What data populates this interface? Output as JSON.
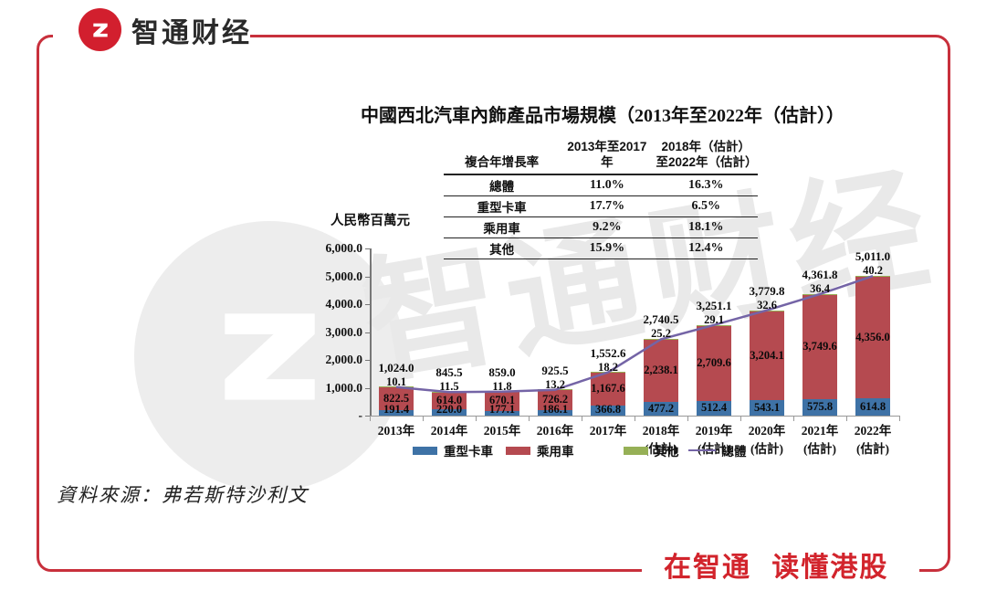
{
  "brand": {
    "name": "智通财经",
    "tagline": "在智通 读懂港股"
  },
  "watermark": {
    "text": "智通财经"
  },
  "title": "中國西北汽車內飾產品市場規模（2013年至2022年（估計））",
  "cagr_table": {
    "headers": [
      "複合年增長率",
      "2013年至2017年",
      "2018年（估計）\n至2022年（估計）"
    ],
    "rows": [
      [
        "總體",
        "11.0%",
        "16.3%"
      ],
      [
        "重型卡車",
        "17.7%",
        "6.5%"
      ],
      [
        "乘用車",
        "9.2%",
        "18.1%"
      ],
      [
        "其他",
        "15.9%",
        "12.4%"
      ]
    ]
  },
  "chart_data": {
    "type": "bar",
    "subtype": "stacked-bars-with-total-line",
    "title": "中國西北汽車內飾產品市場規模（2013年至2022年（估計））",
    "unit_label": "人民幣百萬元",
    "ylim": [
      0,
      6000
    ],
    "y_ticks": [
      "6,000.0",
      "5,000.0",
      "4,000.0",
      "3,000.0",
      "2,000.0",
      "1,000.0",
      "-"
    ],
    "grid": false,
    "legend_position": "bottom",
    "categories": [
      {
        "year": "2013年",
        "note": ""
      },
      {
        "year": "2014年",
        "note": ""
      },
      {
        "year": "2015年",
        "note": ""
      },
      {
        "year": "2016年",
        "note": ""
      },
      {
        "year": "2017年",
        "note": ""
      },
      {
        "year": "2018年",
        "note": "(估計)"
      },
      {
        "year": "2019年",
        "note": "(估計)"
      },
      {
        "year": "2020年",
        "note": "(估計)"
      },
      {
        "year": "2021年",
        "note": "(估計)"
      },
      {
        "year": "2022年",
        "note": "(估計)"
      }
    ],
    "series": [
      {
        "key": "truck",
        "name": "重型卡車",
        "color": "#3E72A6",
        "values": [
          191.4,
          220.0,
          177.1,
          186.1,
          366.8,
          477.2,
          512.4,
          543.1,
          575.8,
          614.8
        ]
      },
      {
        "key": "passenger",
        "name": "乘用車",
        "color": "#B54A50",
        "values": [
          822.5,
          614.0,
          670.1,
          726.2,
          1167.6,
          2238.1,
          2709.6,
          3204.1,
          3749.6,
          4356.0
        ]
      },
      {
        "key": "other",
        "name": "其他",
        "color": "#96B056",
        "values": [
          10.1,
          11.5,
          11.8,
          13.2,
          18.2,
          25.2,
          29.1,
          32.6,
          36.4,
          40.2
        ]
      }
    ],
    "line_series": {
      "key": "total",
      "name": "總體",
      "color": "#7464A6",
      "values": [
        1024.0,
        845.5,
        859.0,
        925.5,
        1552.6,
        2740.5,
        3251.1,
        3779.8,
        4361.8,
        5011.0
      ]
    },
    "legend": [
      {
        "label": "重型卡車",
        "color": "#3E72A6",
        "type": "box"
      },
      {
        "label": "乘用車",
        "color": "#B54A50",
        "type": "box"
      },
      {
        "label": "其他",
        "color": "#96B056",
        "type": "box"
      },
      {
        "label": "總體",
        "color": "#7464A6",
        "type": "line"
      }
    ]
  },
  "source": "資料來源：弗若斯特沙利文",
  "colors": {
    "frame_red": "#C8303C",
    "brand_red": "#D21F2E",
    "tagline_red": "#D2242C"
  }
}
